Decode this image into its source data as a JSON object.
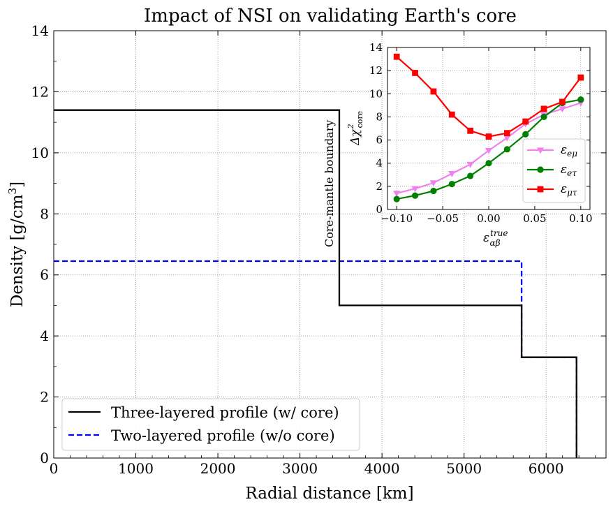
{
  "chart_data": [
    {
      "type": "line",
      "title": "Impact of NSI on validating Earth's core",
      "xlabel": "Radial distance [km]",
      "ylabel_main": "Density [g/cm",
      "ylabel_sup": "3",
      "ylabel_close": "]",
      "xlim": [
        0,
        6730
      ],
      "ylim": [
        0,
        14
      ],
      "x_ticks": [
        0,
        1000,
        2000,
        3000,
        4000,
        5000,
        6000
      ],
      "x_tick_labels": [
        "0",
        "1000",
        "2000",
        "3000",
        "4000",
        "5000",
        "6000"
      ],
      "y_ticks": [
        0,
        2,
        4,
        6,
        8,
        10,
        12,
        14
      ],
      "y_tick_labels": [
        "0",
        "2",
        "4",
        "6",
        "8",
        "10",
        "12",
        "14"
      ],
      "grid": true,
      "annotation": "Core-mantle boundary",
      "legend_position": "lower-left",
      "series": [
        {
          "name": "Three-layered profile (w/ core)",
          "color": "#000000",
          "style": "solid",
          "x": [
            0,
            3480,
            3480,
            5701,
            5701,
            6371,
            6371
          ],
          "y": [
            11.4,
            11.4,
            5.0,
            5.0,
            3.3,
            3.3,
            0
          ]
        },
        {
          "name": "Two-layered profile (w/o core)",
          "color": "#0000ff",
          "style": "dashed",
          "x": [
            0,
            5701,
            5701,
            6371,
            6371
          ],
          "y": [
            6.45,
            6.45,
            3.3,
            3.3,
            0
          ]
        }
      ]
    },
    {
      "type": "line",
      "title": "",
      "xlabel_base": "ε",
      "xlabel_sup": "true",
      "xlabel_sub": "αβ",
      "ylabel_base": "Δχ",
      "ylabel_sup": "2",
      "ylabel_sub": "core",
      "xlim": [
        -0.11,
        0.11
      ],
      "ylim": [
        0,
        14
      ],
      "x_ticks": [
        -0.1,
        -0.05,
        0.0,
        0.05,
        0.1
      ],
      "x_tick_labels": [
        "−0.10",
        "−0.05",
        "0.00",
        "0.05",
        "0.10"
      ],
      "y_ticks": [
        0,
        2,
        4,
        6,
        8,
        10,
        12,
        14
      ],
      "y_tick_labels": [
        "0",
        "2",
        "4",
        "6",
        "8",
        "10",
        "12",
        "14"
      ],
      "grid": true,
      "legend_position": "center-right",
      "x": [
        -0.1,
        -0.08,
        -0.06,
        -0.04,
        -0.02,
        0.0,
        0.02,
        0.04,
        0.06,
        0.08,
        0.1
      ],
      "series": [
        {
          "name": "εeμ",
          "label_base": "ε",
          "label_sub": "eμ",
          "color": "#ee82ee",
          "marker": "triangle-down",
          "values": [
            1.4,
            1.8,
            2.3,
            3.1,
            3.9,
            5.1,
            6.2,
            7.4,
            8.2,
            8.7,
            9.2
          ]
        },
        {
          "name": "εeτ",
          "label_base": "ε",
          "label_sub": "eτ",
          "color": "#008000",
          "marker": "circle",
          "values": [
            0.9,
            1.2,
            1.6,
            2.2,
            2.9,
            4.0,
            5.2,
            6.5,
            8.0,
            9.2,
            9.5
          ]
        },
        {
          "name": "εμτ",
          "label_base": "ε",
          "label_sub": "μτ",
          "color": "#ff0000",
          "marker": "square",
          "values": [
            13.2,
            11.8,
            10.2,
            8.2,
            6.8,
            6.3,
            6.6,
            7.6,
            8.7,
            9.3,
            11.4
          ]
        }
      ]
    }
  ]
}
